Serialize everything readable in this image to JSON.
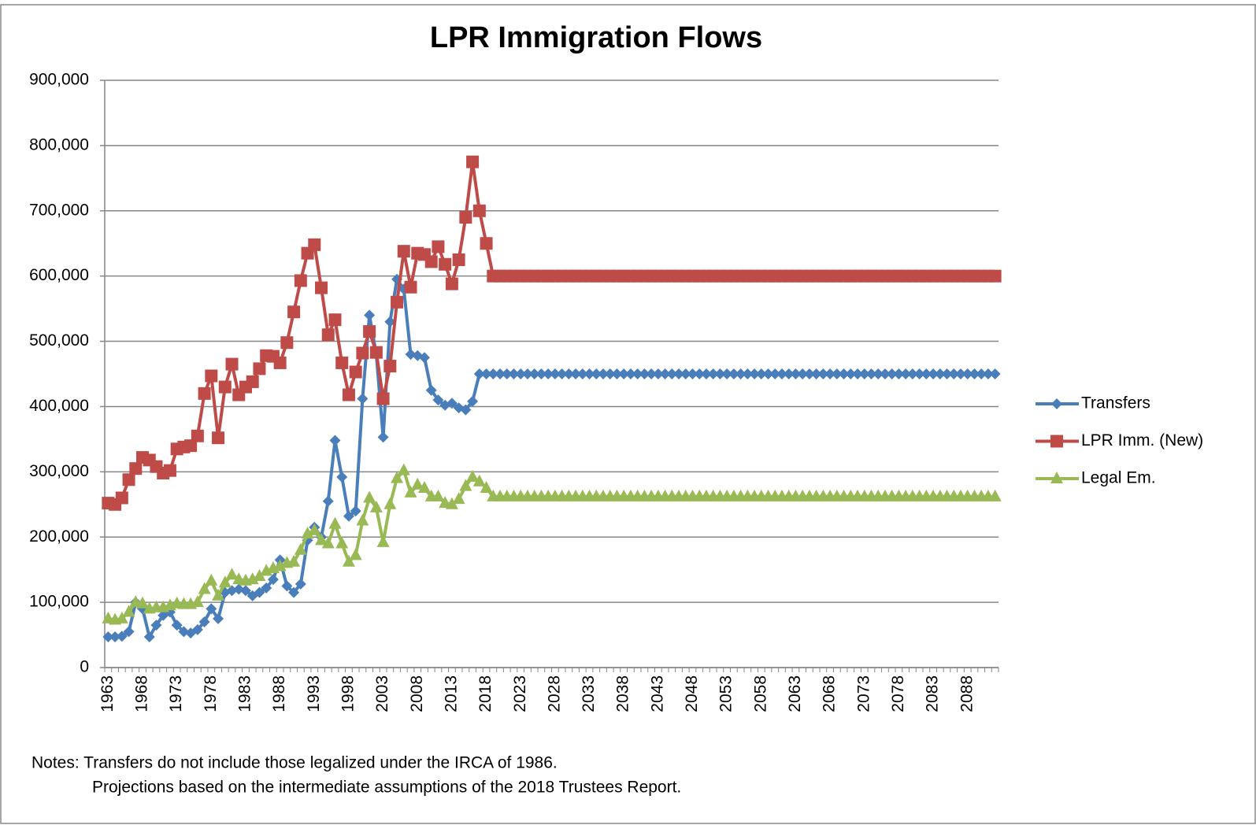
{
  "chart_data": {
    "type": "line",
    "title": "LPR Immigration Flows",
    "categories": [
      "1963",
      null,
      null,
      null,
      null,
      "1968",
      null,
      null,
      null,
      null,
      "1973",
      null,
      null,
      null,
      null,
      "1978",
      null,
      null,
      null,
      null,
      "1983",
      null,
      null,
      null,
      null,
      "1988",
      null,
      null,
      null,
      null,
      "1993",
      null,
      null,
      null,
      null,
      "1998",
      null,
      null,
      null,
      null,
      "2003",
      null,
      null,
      null,
      null,
      "2008",
      null,
      null,
      null,
      null,
      "2013",
      null,
      null,
      null,
      null,
      "2018",
      null,
      null,
      null,
      null,
      "2023",
      null,
      null,
      null,
      null,
      "2028",
      null,
      null,
      null,
      null,
      "2033",
      null,
      null,
      null,
      null,
      "2038",
      null,
      null,
      null,
      null,
      "2043",
      null,
      null,
      null,
      null,
      "2048",
      null,
      null,
      null,
      null,
      "2053",
      null,
      null,
      null,
      null,
      "2058",
      null,
      null,
      null,
      null,
      "2063",
      null,
      null,
      null,
      null,
      "2068",
      null,
      null,
      null,
      null,
      "2073",
      null,
      null,
      null,
      null,
      "2078",
      null,
      null,
      null,
      null,
      "2083",
      null,
      null,
      null,
      null,
      "2088",
      null,
      null,
      null,
      null
    ],
    "series": [
      {
        "name": "Transfers",
        "color": "#4a7ebb",
        "marker": "diamond",
        "values": [
          47000,
          47000,
          48000,
          55000,
          100000,
          90000,
          47000,
          65000,
          80000,
          85000,
          65000,
          55000,
          53000,
          58000,
          70000,
          90000,
          75000,
          115000,
          118000,
          120000,
          118000,
          110000,
          115000,
          122000,
          135000,
          165000,
          125000,
          115000,
          128000,
          195000,
          215000,
          200000,
          255000,
          348000,
          292000,
          232000,
          240000,
          412000,
          540000,
          480000,
          353000,
          530000,
          595000,
          580000,
          480000,
          478000,
          475000,
          425000,
          410000,
          402000,
          405000,
          398000,
          395000,
          408000,
          450000,
          450000,
          450000,
          450000,
          450000,
          450000,
          450000,
          450000,
          450000,
          450000,
          450000,
          450000,
          450000,
          450000,
          450000,
          450000,
          450000,
          450000,
          450000,
          450000,
          450000,
          450000,
          450000,
          450000,
          450000,
          450000,
          450000,
          450000,
          450000,
          450000,
          450000,
          450000,
          450000,
          450000,
          450000,
          450000,
          450000,
          450000,
          450000,
          450000,
          450000,
          450000,
          450000,
          450000,
          450000,
          450000,
          450000,
          450000,
          450000,
          450000,
          450000,
          450000,
          450000,
          450000,
          450000,
          450000,
          450000,
          450000,
          450000,
          450000,
          450000,
          450000,
          450000,
          450000,
          450000,
          450000,
          450000,
          450000,
          450000,
          450000,
          450000,
          450000,
          450000,
          450000,
          450000,
          450000
        ]
      },
      {
        "name": "LPR Imm. (New)",
        "color": "#be4b48",
        "marker": "square",
        "values": [
          252000,
          250000,
          260000,
          288000,
          305000,
          322000,
          318000,
          308000,
          298000,
          302000,
          335000,
          338000,
          340000,
          355000,
          420000,
          447000,
          352000,
          430000,
          465000,
          418000,
          430000,
          438000,
          458000,
          478000,
          477000,
          467000,
          498000,
          545000,
          593000,
          635000,
          648000,
          582000,
          510000,
          533000,
          467000,
          418000,
          453000,
          482000,
          515000,
          483000,
          412000,
          462000,
          560000,
          638000,
          583000,
          635000,
          633000,
          622000,
          645000,
          618000,
          588000,
          625000,
          690000,
          775000,
          700000,
          650000,
          600000,
          600000,
          600000,
          600000,
          600000,
          600000,
          600000,
          600000,
          600000,
          600000,
          600000,
          600000,
          600000,
          600000,
          600000,
          600000,
          600000,
          600000,
          600000,
          600000,
          600000,
          600000,
          600000,
          600000,
          600000,
          600000,
          600000,
          600000,
          600000,
          600000,
          600000,
          600000,
          600000,
          600000,
          600000,
          600000,
          600000,
          600000,
          600000,
          600000,
          600000,
          600000,
          600000,
          600000,
          600000,
          600000,
          600000,
          600000,
          600000,
          600000,
          600000,
          600000,
          600000,
          600000,
          600000,
          600000,
          600000,
          600000,
          600000,
          600000,
          600000,
          600000,
          600000,
          600000,
          600000,
          600000,
          600000,
          600000,
          600000,
          600000,
          600000,
          600000,
          600000,
          600000
        ]
      },
      {
        "name": "Legal Em.",
        "color": "#98b954",
        "marker": "triangle",
        "values": [
          75000,
          73000,
          75000,
          85000,
          100000,
          98000,
          90000,
          92000,
          92000,
          95000,
          98000,
          97000,
          97000,
          100000,
          120000,
          133000,
          110000,
          130000,
          142000,
          135000,
          133000,
          135000,
          140000,
          148000,
          152000,
          155000,
          160000,
          162000,
          180000,
          205000,
          210000,
          195000,
          190000,
          220000,
          190000,
          162000,
          172000,
          225000,
          260000,
          245000,
          192000,
          250000,
          290000,
          302000,
          268000,
          280000,
          275000,
          262000,
          262000,
          252000,
          250000,
          258000,
          278000,
          292000,
          285000,
          275000,
          262000,
          262000,
          262000,
          262000,
          262000,
          262000,
          262000,
          262000,
          262000,
          262000,
          262000,
          262000,
          262000,
          262000,
          262000,
          262000,
          262000,
          262000,
          262000,
          262000,
          262000,
          262000,
          262000,
          262000,
          262000,
          262000,
          262000,
          262000,
          262000,
          262000,
          262000,
          262000,
          262000,
          262000,
          262000,
          262000,
          262000,
          262000,
          262000,
          262000,
          262000,
          262000,
          262000,
          262000,
          262000,
          262000,
          262000,
          262000,
          262000,
          262000,
          262000,
          262000,
          262000,
          262000,
          262000,
          262000,
          262000,
          262000,
          262000,
          262000,
          262000,
          262000,
          262000,
          262000,
          262000,
          262000,
          262000,
          262000,
          262000,
          262000,
          262000,
          262000,
          262000,
          262000
        ]
      }
    ],
    "ylim": [
      0,
      900000
    ],
    "yticks": [
      0,
      {
        "value": 100000,
        "label": "100,000"
      },
      {
        "value": 200000,
        "label": "200,000"
      },
      {
        "value": 300000,
        "label": "300,000"
      },
      {
        "value": 400000,
        "label": "400,000"
      },
      {
        "value": 500000,
        "label": "500,000"
      },
      {
        "value": 600000,
        "label": "600,000"
      },
      {
        "value": 700000,
        "label": "700,000"
      },
      {
        "value": 800000,
        "label": "800,000"
      },
      {
        "value": 900000,
        "label": "900,000"
      }
    ],
    "grid": true,
    "legend": "right",
    "notes": [
      "Notes: Transfers do not include those legalized under the IRCA of 1986.",
      "Projections based on the intermediate assumptions of the 2018 Trustees Report."
    ]
  }
}
